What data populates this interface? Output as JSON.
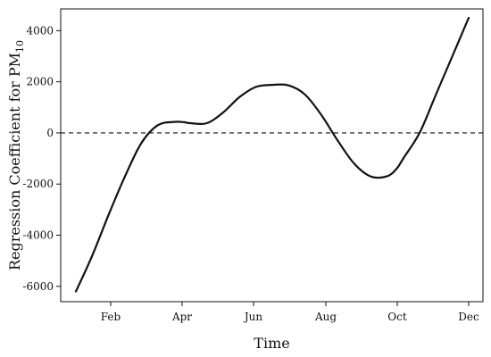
{
  "chart_data": {
    "type": "line",
    "xlabel": "Time",
    "ylabel": "Regression Coefficient for PM",
    "ylabel_subscript": "10",
    "x_ticks": [
      "Feb",
      "Apr",
      "Jun",
      "Aug",
      "Oct",
      "Dec"
    ],
    "y_ticks": [
      -6000,
      -4000,
      -2000,
      0,
      2000,
      4000
    ],
    "ylim": [
      -6600,
      4850
    ],
    "xlim": [
      0,
      12
    ],
    "reference_line": {
      "y": 0,
      "style": "dashed"
    },
    "grid": false,
    "series": [
      {
        "x": [
          0.0,
          0.5,
          1.0,
          1.5,
          2.0,
          2.5,
          3.0,
          3.3,
          3.5,
          4.0,
          4.5,
          5.0,
          5.5,
          6.0,
          6.5,
          7.0,
          7.5,
          8.0,
          8.5,
          9.0,
          9.5,
          9.8,
          10.0,
          10.5,
          11.0,
          11.5,
          12.0
        ],
        "y": [
          -6200,
          -4800,
          -3200,
          -1700,
          -400,
          300,
          430,
          420,
          380,
          380,
          800,
          1400,
          1800,
          1880,
          1860,
          1500,
          700,
          -300,
          -1200,
          -1700,
          -1700,
          -1400,
          -1000,
          0,
          1500,
          3000,
          4500
        ]
      }
    ]
  }
}
